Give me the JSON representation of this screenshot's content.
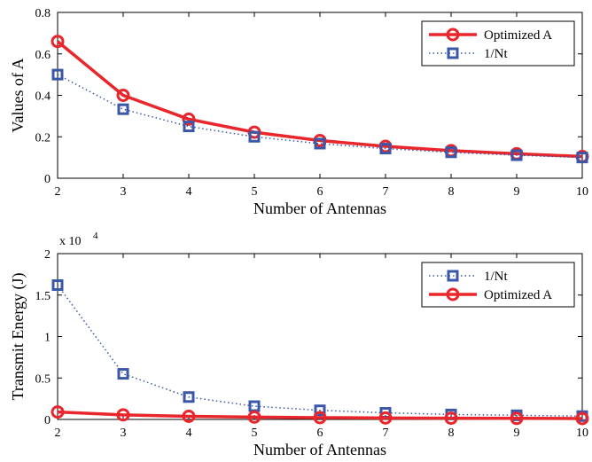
{
  "chart_data": [
    {
      "type": "line",
      "xlabel": "Number of Antennas",
      "ylabel": "Values of A",
      "xlim": [
        2,
        10
      ],
      "ylim": [
        0,
        0.8
      ],
      "x": [
        2,
        3,
        4,
        5,
        6,
        7,
        8,
        9,
        10
      ],
      "xticks": [
        "2",
        "3",
        "4",
        "5",
        "6",
        "7",
        "8",
        "9",
        "10"
      ],
      "yticks": [
        "0",
        "0.2",
        "0.4",
        "0.6",
        "0.8"
      ],
      "ytick_values": [
        0,
        0.2,
        0.4,
        0.6,
        0.8
      ],
      "legend_position": "top-right",
      "series": [
        {
          "name": "Optimized A",
          "color": "#e8262b",
          "style": "solid",
          "marker": "circle",
          "values": [
            0.66,
            0.4,
            0.285,
            0.222,
            0.182,
            0.154,
            0.133,
            0.118,
            0.105
          ]
        },
        {
          "name": "1/Nt",
          "color": "#3b57a8",
          "style": "dotted",
          "marker": "square",
          "values": [
            0.5,
            0.333,
            0.25,
            0.2,
            0.167,
            0.143,
            0.125,
            0.111,
            0.1
          ]
        }
      ]
    },
    {
      "type": "line",
      "xlabel": "Number of Antennas",
      "ylabel": "Transmit Energy (J)",
      "axis_exponent": "x 10",
      "axis_exponent_power": "4",
      "xlim": [
        2,
        10
      ],
      "ylim": [
        0,
        20000
      ],
      "x": [
        2,
        3,
        4,
        5,
        6,
        7,
        8,
        9,
        10
      ],
      "xticks": [
        "2",
        "3",
        "4",
        "5",
        "6",
        "7",
        "8",
        "9",
        "10"
      ],
      "yticks": [
        "0",
        "0.5",
        "1",
        "1.5",
        "2"
      ],
      "ytick_values": [
        0,
        5000,
        10000,
        15000,
        20000
      ],
      "legend_position": "top-right",
      "series": [
        {
          "name": "1/Nt",
          "color": "#3b57a8",
          "style": "dotted",
          "marker": "square",
          "values": [
            16200,
            5500,
            2700,
            1600,
            1100,
            800,
            600,
            500,
            400
          ]
        },
        {
          "name": "Optimized A",
          "color": "#e8262b",
          "style": "solid",
          "marker": "circle",
          "values": [
            900,
            550,
            380,
            280,
            220,
            180,
            150,
            130,
            110
          ]
        }
      ]
    }
  ]
}
